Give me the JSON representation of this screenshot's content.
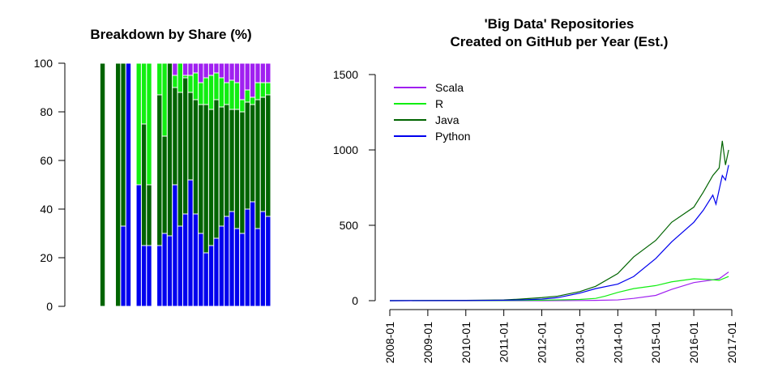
{
  "chart_data": [
    {
      "type": "bar",
      "stacked": true,
      "title": "Breakdown by Share (%)",
      "xlabel": "",
      "ylabel": "",
      "ylim": [
        0,
        100
      ],
      "yticks": [
        "0",
        "20",
        "40",
        "60",
        "80",
        "100"
      ],
      "grid": false,
      "series_order": [
        "Python",
        "Java",
        "R",
        "Scala"
      ],
      "colors": {
        "Python": "#0000ee",
        "Java": "#006400",
        "R": "#11ee11",
        "Scala": "#a020f0"
      },
      "bars": [
        {
          "Python": 0,
          "Java": 0,
          "R": 0,
          "Scala": 0
        },
        {
          "Python": 0,
          "Java": 100,
          "R": 0,
          "Scala": 0
        },
        {
          "Python": 0,
          "Java": 0,
          "R": 0,
          "Scala": 0
        },
        {
          "Python": 0,
          "Java": 0,
          "R": 0,
          "Scala": 0
        },
        {
          "Python": 0,
          "Java": 100,
          "R": 0,
          "Scala": 0
        },
        {
          "Python": 33,
          "Java": 67,
          "R": 0,
          "Scala": 0
        },
        {
          "Python": 100,
          "Java": 0,
          "R": 0,
          "Scala": 0
        },
        {
          "Python": 0,
          "Java": 0,
          "R": 0,
          "Scala": 0
        },
        {
          "Python": 50,
          "Java": 0,
          "R": 50,
          "Scala": 0
        },
        {
          "Python": 25,
          "Java": 50,
          "R": 25,
          "Scala": 0
        },
        {
          "Python": 25,
          "Java": 25,
          "R": 50,
          "Scala": 0
        },
        {
          "Python": 0,
          "Java": 0,
          "R": 0,
          "Scala": 0
        },
        {
          "Python": 25,
          "Java": 62,
          "R": 13,
          "Scala": 0
        },
        {
          "Python": 30,
          "Java": 40,
          "R": 30,
          "Scala": 0
        },
        {
          "Python": 29,
          "Java": 71,
          "R": 0,
          "Scala": 0
        },
        {
          "Python": 50,
          "Java": 40,
          "R": 5,
          "Scala": 5
        },
        {
          "Python": 33,
          "Java": 55,
          "R": 12,
          "Scala": 0
        },
        {
          "Python": 38,
          "Java": 56,
          "R": 1,
          "Scala": 5
        },
        {
          "Python": 52,
          "Java": 36,
          "R": 7,
          "Scala": 5
        },
        {
          "Python": 38,
          "Java": 47,
          "R": 11,
          "Scala": 4
        },
        {
          "Python": 30,
          "Java": 53,
          "R": 9,
          "Scala": 8
        },
        {
          "Python": 22,
          "Java": 61,
          "R": 11,
          "Scala": 6
        },
        {
          "Python": 25,
          "Java": 56,
          "R": 14,
          "Scala": 5
        },
        {
          "Python": 28,
          "Java": 57,
          "R": 11,
          "Scala": 4
        },
        {
          "Python": 33,
          "Java": 49,
          "R": 12,
          "Scala": 6
        },
        {
          "Python": 37,
          "Java": 46,
          "R": 9,
          "Scala": 8
        },
        {
          "Python": 39,
          "Java": 42,
          "R": 12,
          "Scala": 7
        },
        {
          "Python": 32,
          "Java": 49,
          "R": 11,
          "Scala": 8
        },
        {
          "Python": 30,
          "Java": 50,
          "R": 5,
          "Scala": 15
        },
        {
          "Python": 40,
          "Java": 44,
          "R": 5,
          "Scala": 11
        },
        {
          "Python": 43,
          "Java": 40,
          "R": 3,
          "Scala": 14
        },
        {
          "Python": 32,
          "Java": 53,
          "R": 7,
          "Scala": 8
        },
        {
          "Python": 39,
          "Java": 47,
          "R": 6,
          "Scala": 8
        },
        {
          "Python": 37,
          "Java": 50,
          "R": 5,
          "Scala": 8
        }
      ]
    },
    {
      "type": "line",
      "title": "'Big Data' Repositories\nCreated on GitHub per Year (Est.)",
      "xlabel": "",
      "ylabel": "",
      "xlim": [
        "2008-01",
        "2017-01"
      ],
      "ylim": [
        0,
        1500
      ],
      "xticks": [
        "2008-01",
        "2009-01",
        "2010-01",
        "2011-01",
        "2012-01",
        "2013-01",
        "2014-01",
        "2015-01",
        "2016-01",
        "2017-01"
      ],
      "yticks": [
        "0",
        "500",
        "1000",
        "1500"
      ],
      "grid": false,
      "legend_position": "top-left",
      "series": [
        {
          "name": "Scala",
          "color": "#a020f0",
          "points": [
            [
              "2008-01",
              0
            ],
            [
              "2011-01",
              0
            ],
            [
              "2012-01",
              0
            ],
            [
              "2013-01",
              1
            ],
            [
              "2013-06",
              2
            ],
            [
              "2014-01",
              5
            ],
            [
              "2014-06",
              15
            ],
            [
              "2015-01",
              35
            ],
            [
              "2015-06",
              75
            ],
            [
              "2016-01",
              120
            ],
            [
              "2016-06",
              135
            ],
            [
              "2016-09",
              145
            ],
            [
              "2016-12",
              190
            ]
          ]
        },
        {
          "name": "R",
          "color": "#11ee11",
          "points": [
            [
              "2008-01",
              0
            ],
            [
              "2011-01",
              1
            ],
            [
              "2012-01",
              3
            ],
            [
              "2013-01",
              8
            ],
            [
              "2013-06",
              15
            ],
            [
              "2013-09",
              30
            ],
            [
              "2014-01",
              55
            ],
            [
              "2014-06",
              80
            ],
            [
              "2015-01",
              100
            ],
            [
              "2015-06",
              125
            ],
            [
              "2016-01",
              145
            ],
            [
              "2016-06",
              140
            ],
            [
              "2016-09",
              135
            ],
            [
              "2016-12",
              160
            ]
          ]
        },
        {
          "name": "Java",
          "color": "#006400",
          "points": [
            [
              "2008-01",
              0
            ],
            [
              "2010-01",
              2
            ],
            [
              "2011-01",
              5
            ],
            [
              "2011-06",
              10
            ],
            [
              "2012-01",
              20
            ],
            [
              "2012-06",
              30
            ],
            [
              "2013-01",
              60
            ],
            [
              "2013-06",
              95
            ],
            [
              "2014-01",
              180
            ],
            [
              "2014-06",
              290
            ],
            [
              "2015-01",
              400
            ],
            [
              "2015-06",
              520
            ],
            [
              "2016-01",
              620
            ],
            [
              "2016-04",
              720
            ],
            [
              "2016-07",
              830
            ],
            [
              "2016-09",
              880
            ],
            [
              "2016-10",
              1060
            ],
            [
              "2016-11",
              900
            ],
            [
              "2016-12",
              1000
            ]
          ]
        },
        {
          "name": "Python",
          "color": "#0000ee",
          "points": [
            [
              "2008-01",
              0
            ],
            [
              "2010-01",
              1
            ],
            [
              "2011-01",
              3
            ],
            [
              "2011-06",
              5
            ],
            [
              "2012-01",
              10
            ],
            [
              "2012-06",
              20
            ],
            [
              "2013-01",
              50
            ],
            [
              "2013-06",
              80
            ],
            [
              "2014-01",
              110
            ],
            [
              "2014-06",
              160
            ],
            [
              "2015-01",
              280
            ],
            [
              "2015-06",
              390
            ],
            [
              "2016-01",
              520
            ],
            [
              "2016-04",
              600
            ],
            [
              "2016-07",
              700
            ],
            [
              "2016-08",
              640
            ],
            [
              "2016-10",
              830
            ],
            [
              "2016-11",
              800
            ],
            [
              "2016-12",
              900
            ]
          ]
        }
      ]
    }
  ]
}
